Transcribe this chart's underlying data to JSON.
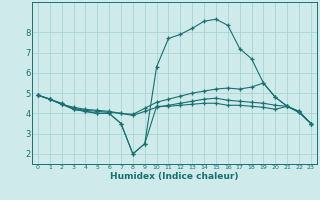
{
  "xlabel": "Humidex (Indice chaleur)",
  "bg_color": "#ceeaea",
  "grid_color": "#aad4d4",
  "line_color": "#1a7070",
  "xlim": [
    -0.5,
    23.5
  ],
  "ylim": [
    1.5,
    9.5
  ],
  "xticks": [
    0,
    1,
    2,
    3,
    4,
    5,
    6,
    7,
    8,
    9,
    10,
    11,
    12,
    13,
    14,
    15,
    16,
    17,
    18,
    19,
    20,
    21,
    22,
    23
  ],
  "yticks": [
    2,
    3,
    4,
    5,
    6,
    7,
    8
  ],
  "line1_x": [
    0,
    1,
    2,
    3,
    4,
    5,
    6,
    7,
    8,
    9,
    10,
    11,
    12,
    13,
    14,
    15,
    16,
    17,
    18,
    19,
    20,
    21,
    22,
    23
  ],
  "line1_y": [
    4.9,
    4.7,
    4.5,
    4.2,
    4.1,
    4.0,
    4.0,
    3.5,
    2.0,
    2.5,
    4.35,
    4.35,
    4.4,
    4.45,
    4.5,
    4.5,
    4.4,
    4.4,
    4.35,
    4.3,
    4.2,
    4.35,
    4.05,
    3.5
  ],
  "line2_x": [
    0,
    1,
    2,
    3,
    4,
    5,
    6,
    7,
    8,
    9,
    10,
    11,
    12,
    13,
    14,
    15,
    16,
    17,
    18,
    19,
    20,
    21,
    22,
    23
  ],
  "line2_y": [
    4.9,
    4.7,
    4.45,
    4.3,
    4.2,
    4.15,
    4.1,
    4.0,
    3.95,
    4.25,
    4.55,
    4.7,
    4.85,
    5.0,
    5.1,
    5.2,
    5.25,
    5.2,
    5.3,
    5.5,
    4.8,
    4.35,
    4.1,
    3.5
  ],
  "line3_x": [
    0,
    1,
    2,
    3,
    4,
    5,
    6,
    7,
    8,
    9,
    10,
    11,
    12,
    13,
    14,
    15,
    16,
    17,
    18,
    19,
    20,
    21,
    22,
    23
  ],
  "line3_y": [
    4.9,
    4.7,
    4.45,
    4.25,
    4.15,
    4.1,
    4.05,
    4.0,
    3.9,
    4.1,
    4.3,
    4.4,
    4.5,
    4.6,
    4.7,
    4.75,
    4.65,
    4.6,
    4.55,
    4.5,
    4.4,
    4.35,
    4.05,
    3.5
  ],
  "line4_x": [
    0,
    1,
    2,
    3,
    4,
    5,
    6,
    7,
    8,
    9,
    10,
    11,
    12,
    13,
    14,
    15,
    16,
    17,
    18,
    19,
    20,
    21,
    22,
    23
  ],
  "line4_y": [
    4.9,
    4.7,
    4.45,
    4.2,
    4.1,
    4.0,
    4.0,
    3.5,
    2.0,
    2.5,
    6.3,
    7.7,
    7.9,
    8.2,
    8.55,
    8.65,
    8.35,
    7.2,
    6.7,
    5.5,
    4.8,
    4.35,
    4.1,
    3.5
  ]
}
